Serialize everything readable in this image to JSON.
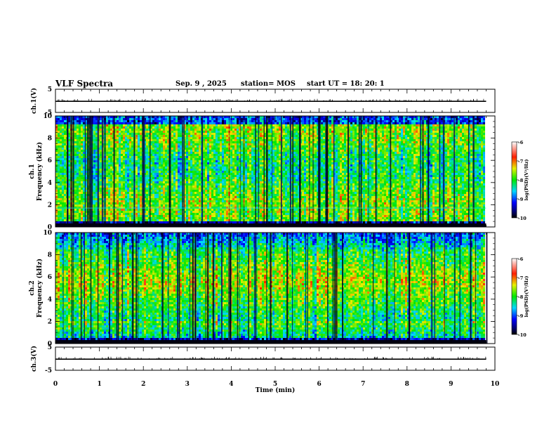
{
  "header": {
    "title": "VLF Spectra",
    "date": "Sep. 9 , 2025",
    "station": "station= MOS",
    "start": "start UT = 18: 20: 1"
  },
  "chart_data": [
    {
      "type": "line",
      "name": "ch1-waveform",
      "ylabel": "ch.1(V)",
      "ylim": [
        -5,
        5
      ],
      "yticks": [
        "5",
        "-5"
      ],
      "baseline_value": -0.2
    },
    {
      "type": "heatmap",
      "name": "ch1-spectrogram",
      "ylabel_line1": "ch.1",
      "ylabel_line2": "Frequency (kHz)",
      "ylim": [
        0,
        10
      ],
      "yticks": [
        "0",
        "2",
        "4",
        "6",
        "8",
        "10"
      ],
      "colorbar": {
        "label": "log(PSD)(V²/Hz)",
        "range": [
          -10,
          -6
        ],
        "ticks": [
          "-6",
          "-7",
          "-8",
          "-9",
          "-10"
        ]
      }
    },
    {
      "type": "heatmap",
      "name": "ch2-spectrogram",
      "ylabel_line1": "ch.2",
      "ylabel_line2": "Frequency (kHz)",
      "ylim": [
        0,
        10
      ],
      "yticks": [
        "0",
        "2",
        "4",
        "6",
        "8",
        "10"
      ],
      "colorbar": {
        "label": "log(PSD)(V²/Hz)",
        "range": [
          -10,
          -6
        ],
        "ticks": [
          "-6",
          "-7",
          "-8",
          "-9",
          "-10"
        ]
      }
    },
    {
      "type": "line",
      "name": "ch3-waveform",
      "ylabel": "ch.3(V)",
      "ylim": [
        -5,
        5
      ],
      "yticks": [
        "5",
        "-5"
      ],
      "baseline_value": -0.2
    }
  ],
  "xaxis": {
    "label": "Time (min)",
    "xlim": [
      0,
      10
    ],
    "ticks": [
      "0",
      "1",
      "2",
      "3",
      "4",
      "5",
      "6",
      "7",
      "8",
      "9",
      "10"
    ],
    "data_end": 9.8
  }
}
